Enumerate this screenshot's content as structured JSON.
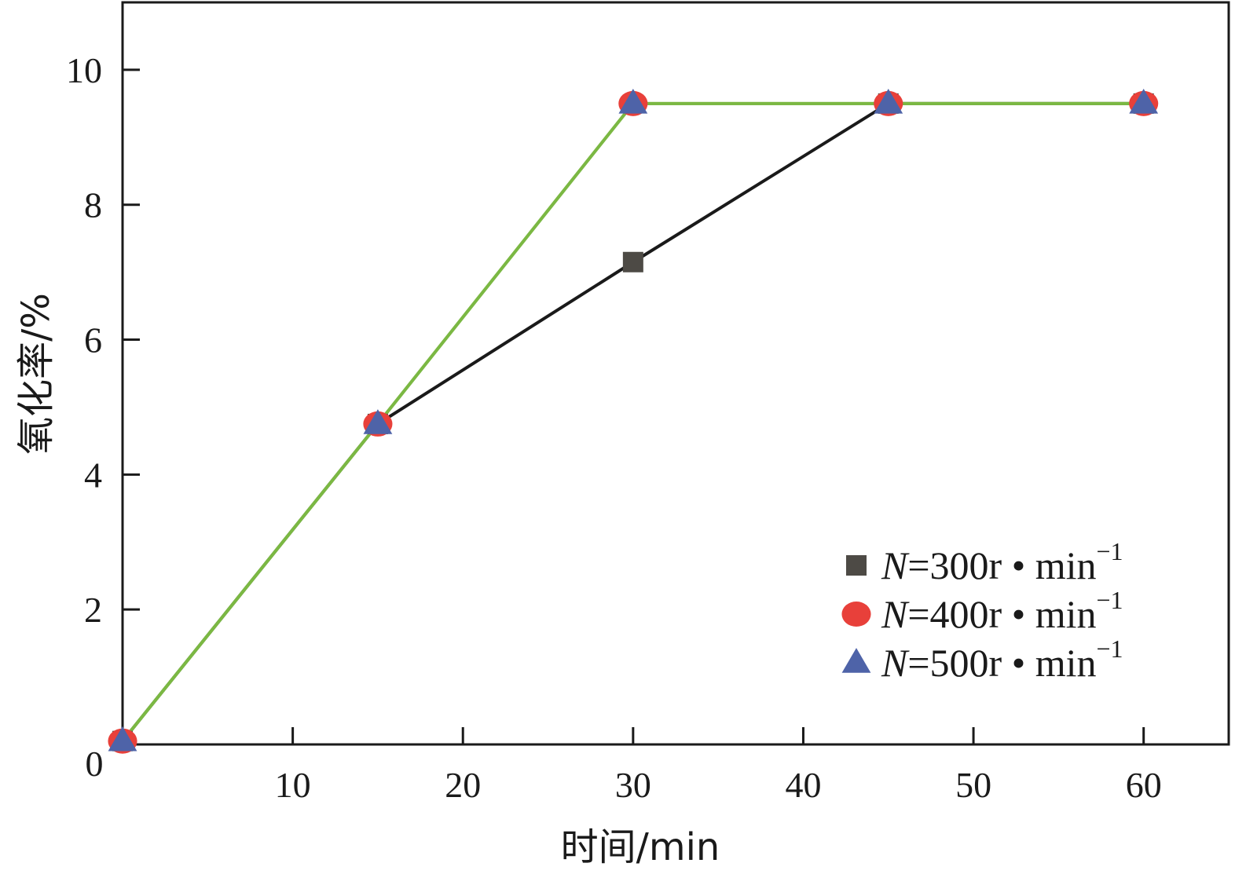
{
  "chart_data": {
    "type": "line",
    "title": "",
    "xlabel": "时间/min",
    "ylabel": "氧化率/%",
    "xlim": [
      0,
      65
    ],
    "ylim": [
      0,
      11
    ],
    "x_ticks": [
      10,
      20,
      30,
      40,
      50,
      60
    ],
    "y_ticks": [
      2,
      4,
      6,
      8,
      10
    ],
    "origin_label": "0",
    "grid": false,
    "legend_position": "bottom-right",
    "series": [
      {
        "name_parts": {
          "var": "N",
          "text": "=300r • min",
          "sup": "−1"
        },
        "marker": "square",
        "color": "#4d4a45",
        "line_color": "#1a1a1a",
        "x": [
          0,
          15,
          30,
          45,
          60
        ],
        "values": [
          0.05,
          4.75,
          7.15,
          9.5,
          9.5
        ]
      },
      {
        "name_parts": {
          "var": "N",
          "text": "=400r • min",
          "sup": "−1"
        },
        "marker": "circle",
        "color": "#e8403a",
        "line_color": "#7bb843",
        "x": [
          0,
          15,
          30,
          45,
          60
        ],
        "values": [
          0.05,
          4.75,
          9.5,
          9.5,
          9.5
        ]
      },
      {
        "name_parts": {
          "var": "N",
          "text": "=500r • min",
          "sup": "−1"
        },
        "marker": "triangle",
        "color": "#4e63a8",
        "line_color": "#7bb843",
        "x": [
          0,
          15,
          30,
          45,
          60
        ],
        "values": [
          0.05,
          4.75,
          9.5,
          9.5,
          9.5
        ]
      }
    ]
  }
}
